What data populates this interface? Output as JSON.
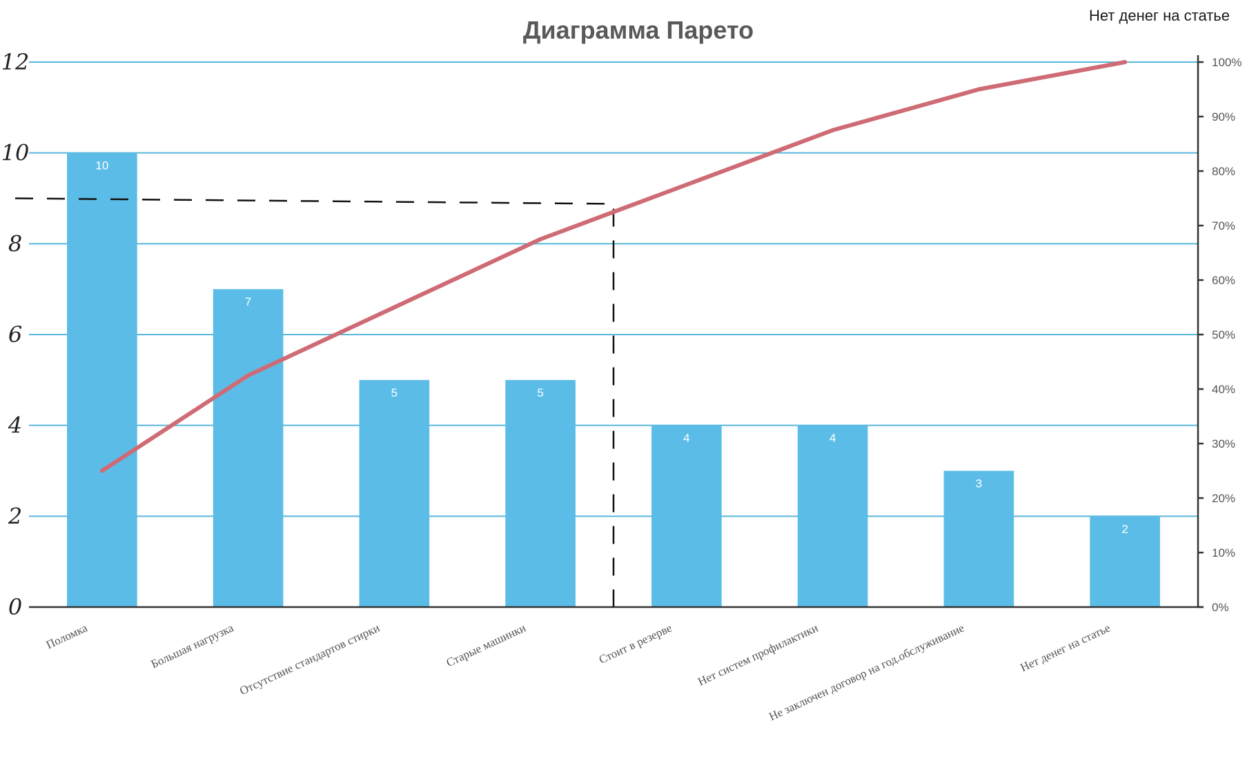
{
  "header": {
    "title": "Диаграмма Парето",
    "corner_note": "Нет денег на статье"
  },
  "colors": {
    "bars": "#5bbde7",
    "cumulative_line": "#cf6b75",
    "grid": "#58b7da",
    "background": "#ffffff"
  },
  "chart_data": {
    "type": "bar",
    "title": "Диаграмма Парето",
    "xlabel": "",
    "ylabel": "",
    "categories": [
      "Поломка",
      "Большая нагрузка",
      "Отсутствие стандартов стирки",
      "Старые машинки",
      "Стоит в резерве",
      "Нет систем профилактики",
      "Не заключен договор на год.обслуживание",
      "Нет денег на статье"
    ],
    "series": [
      {
        "type": "bar",
        "axis": "left",
        "values": [
          10,
          7,
          5,
          5,
          4,
          4,
          3,
          2
        ]
      },
      {
        "type": "line",
        "axis": "right",
        "values": [
          25,
          42.5,
          55,
          67.5,
          77.5,
          87.5,
          95,
          100
        ]
      }
    ],
    "data_labels": [
      "10",
      "7",
      "5",
      "5",
      "4",
      "4",
      "3",
      "2"
    ],
    "left_axis": {
      "ylim": [
        0,
        12
      ],
      "ticks": [
        "0",
        "2",
        "4",
        "6",
        "8",
        "10",
        "12"
      ]
    },
    "right_axis": {
      "ylim": [
        0,
        100
      ],
      "ticks": [
        "0%",
        "10%",
        "20%",
        "30%",
        "40%",
        "50%",
        "60%",
        "70%",
        "80%",
        "90%",
        "100%"
      ]
    },
    "guide_threshold": {
      "left_value": 9,
      "category_boundary": 4
    },
    "grid": true,
    "legend": "none"
  }
}
